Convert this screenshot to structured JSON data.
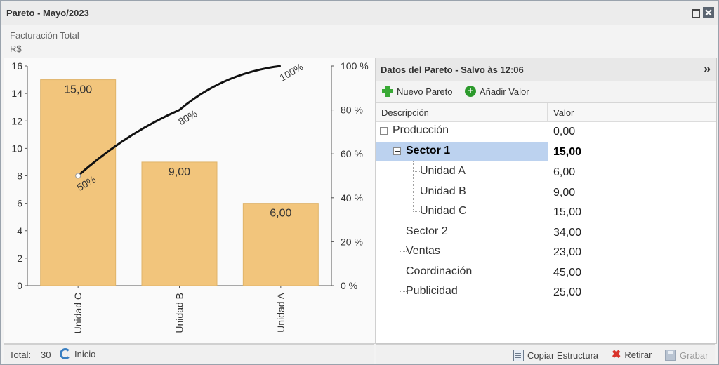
{
  "window": {
    "title": "Pareto - Mayo/2023"
  },
  "subheader": {
    "line1": "Facturación Total",
    "line2": "R$"
  },
  "chart_data": {
    "type": "bar",
    "categories": [
      "Unidad C",
      "Unidad B",
      "Unidad A"
    ],
    "values": [
      15,
      9,
      6
    ],
    "value_labels": [
      "15,00",
      "9,00",
      "6,00"
    ],
    "cumulative_percent": [
      50,
      80,
      100
    ],
    "cumulative_labels": [
      "50%",
      "80%",
      "100%"
    ],
    "ylim": [
      0,
      16
    ],
    "yticks": [
      "0",
      "2",
      "4",
      "6",
      "8",
      "10",
      "12",
      "14",
      "16"
    ],
    "y2ticks": [
      "0 %",
      "20 %",
      "40 %",
      "60 %",
      "80 %",
      "100 %"
    ],
    "bar_color": "#f2c57c",
    "line_color": "#111111"
  },
  "status": {
    "total_label": "Total:",
    "total_value": "30",
    "home_label": "Inicio"
  },
  "panel": {
    "title": "Datos del Pareto - Salvo às 12:06",
    "toolbar": {
      "new_label": "Nuevo Pareto",
      "add_label": "Añadir Valor"
    },
    "columns": {
      "desc": "Descripción",
      "value": "Valor"
    },
    "rows": [
      {
        "label": "Producción",
        "value": "0,00"
      },
      {
        "label": "Sector 1",
        "value": "15,00"
      },
      {
        "label": "Unidad A",
        "value": "6,00"
      },
      {
        "label": "Unidad B",
        "value": "9,00"
      },
      {
        "label": "Unidad C",
        "value": "15,00"
      },
      {
        "label": "Sector 2",
        "value": "34,00"
      },
      {
        "label": "Ventas",
        "value": "23,00"
      },
      {
        "label": "Coordinación",
        "value": "45,00"
      },
      {
        "label": "Publicidad",
        "value": "25,00"
      }
    ],
    "footer": {
      "copy_label": "Copiar Estructura",
      "remove_label": "Retirar",
      "save_label": "Grabar"
    }
  },
  "colors": {
    "selection": "#bcd2ef",
    "accent_green": "#39a935",
    "remove_red": "#d9342b"
  }
}
